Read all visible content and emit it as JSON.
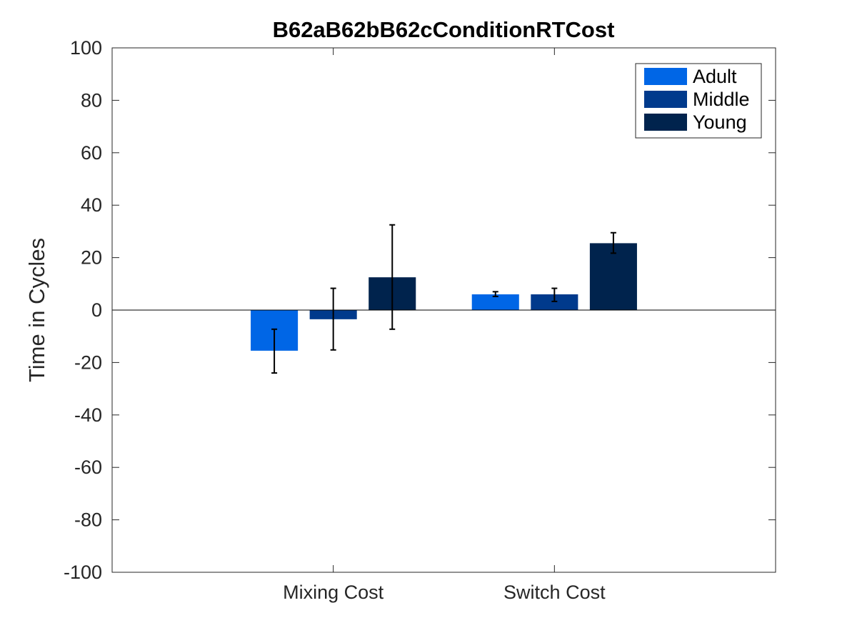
{
  "chart_data": {
    "type": "bar",
    "title": "B62aB62bB62cConditionRTCost",
    "xlabel": "",
    "ylabel": "Time in Cycles",
    "categories": [
      "Mixing Cost",
      "Switch Cost"
    ],
    "ylim": [
      -100,
      100
    ],
    "yticks": [
      -100,
      -80,
      -60,
      -40,
      -20,
      0,
      20,
      40,
      60,
      80,
      100
    ],
    "grid": false,
    "legend_position": "top-right",
    "series": [
      {
        "name": "Adult",
        "color": "#0066e6",
        "values": [
          -15.5,
          6.0
        ],
        "err_low": [
          -24.0,
          5.2
        ],
        "err_high": [
          -7.3,
          7.0
        ]
      },
      {
        "name": "Middle",
        "color": "#003a8c",
        "values": [
          -3.5,
          6.0
        ],
        "err_low": [
          -15.2,
          3.3
        ],
        "err_high": [
          8.3,
          8.3
        ]
      },
      {
        "name": "Young",
        "color": "#00234d",
        "values": [
          12.5,
          25.5
        ],
        "err_low": [
          -7.3,
          21.7
        ],
        "err_high": [
          32.5,
          29.5
        ]
      }
    ]
  }
}
